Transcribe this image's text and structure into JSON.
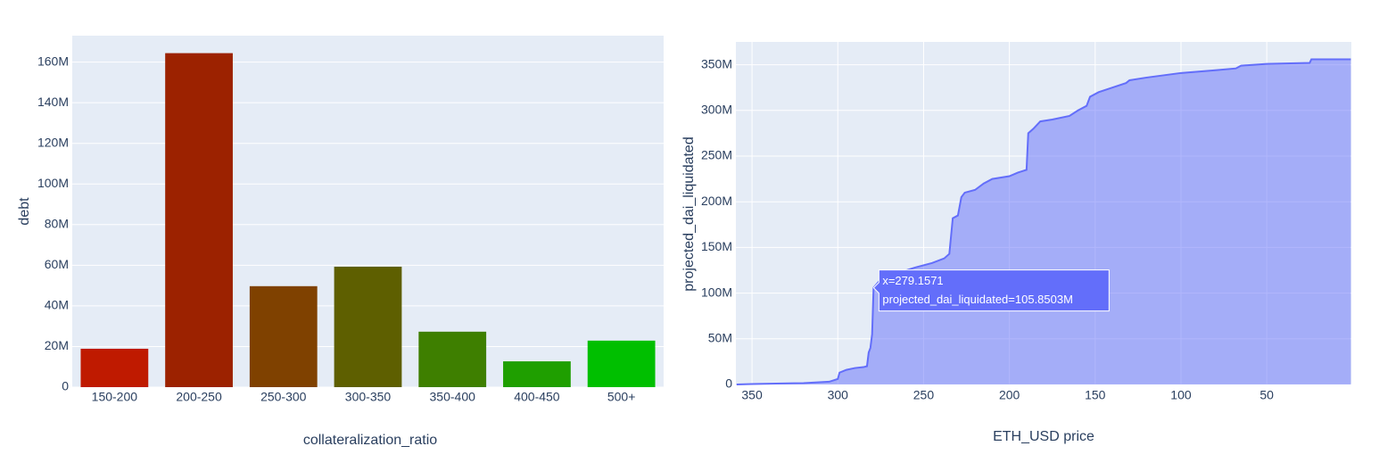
{
  "chart_data": [
    {
      "type": "bar",
      "x_label": "collateralization_ratio",
      "y_label": "debt",
      "categories": [
        "150-200",
        "200-250",
        "250-300",
        "300-350",
        "350-400",
        "400-450",
        "500+"
      ],
      "values": [
        18900000,
        164400000,
        49700000,
        59300000,
        27300000,
        12700000,
        22900000
      ],
      "colors": [
        "#bf1a00",
        "#9c2200",
        "#7f4100",
        "#5e5f00",
        "#3e7f00",
        "#1f9f00",
        "#00bf00"
      ],
      "ylim": [
        0,
        173000000
      ],
      "yticks": [
        0,
        {
          "value": 20000000,
          "label": "20M"
        },
        {
          "value": 40000000,
          "label": "40M"
        },
        {
          "value": 60000000,
          "label": "60M"
        },
        {
          "value": 80000000,
          "label": "80M"
        },
        {
          "value": 100000000,
          "label": "100M"
        },
        {
          "value": 120000000,
          "label": "120M"
        },
        {
          "value": 140000000,
          "label": "140M"
        },
        {
          "value": 160000000,
          "label": "160M"
        }
      ],
      "grid": true
    },
    {
      "type": "area",
      "x_label": "ETH_USD price",
      "y_label": "projected_dai_liquidated",
      "color": "#636efa",
      "x": [
        359,
        350,
        320,
        305,
        300,
        299,
        295,
        290,
        285,
        283,
        282,
        281,
        280,
        279.1571,
        275,
        265,
        255,
        245,
        238,
        235,
        233,
        230,
        228,
        226,
        220,
        215,
        210,
        200,
        195,
        190,
        189,
        186,
        182,
        175,
        165,
        160,
        155,
        153,
        148,
        140,
        132,
        130,
        120,
        100,
        80,
        68,
        65,
        50,
        25,
        24,
        1
      ],
      "values": [
        0,
        500000,
        1500000,
        3000000,
        6000000,
        13000000,
        16000000,
        18000000,
        19000000,
        20000000,
        35000000,
        40000000,
        55000000,
        105850300,
        115000000,
        122000000,
        128000000,
        133000000,
        138000000,
        143000000,
        182000000,
        185000000,
        205000000,
        210000000,
        213000000,
        220000000,
        225000000,
        228000000,
        232000000,
        235000000,
        275000000,
        280000000,
        288000000,
        290000000,
        294000000,
        300000000,
        305000000,
        315000000,
        320000000,
        325000000,
        330000000,
        333000000,
        336000000,
        341000000,
        344000000,
        346000000,
        349000000,
        351000000,
        352000000,
        356000000,
        356000000
      ],
      "xlim": [
        359.4,
        0.7
      ],
      "xticks": [
        350,
        300,
        250,
        200,
        150,
        100,
        50
      ],
      "ylim": [
        0,
        375000000
      ],
      "yticks": [
        0,
        {
          "value": 50000000,
          "label": "50M"
        },
        {
          "value": 100000000,
          "label": "100M"
        },
        {
          "value": 150000000,
          "label": "150M"
        },
        {
          "value": 200000000,
          "label": "200M"
        },
        {
          "value": 250000000,
          "label": "250M"
        },
        {
          "value": 300000000,
          "label": "300M"
        },
        {
          "value": 350000000,
          "label": "350M"
        }
      ],
      "grid": true,
      "hover_label": [
        "x=279.1571",
        "projected_dai_liquidated=105.8503M"
      ],
      "hover_point": 13
    }
  ]
}
